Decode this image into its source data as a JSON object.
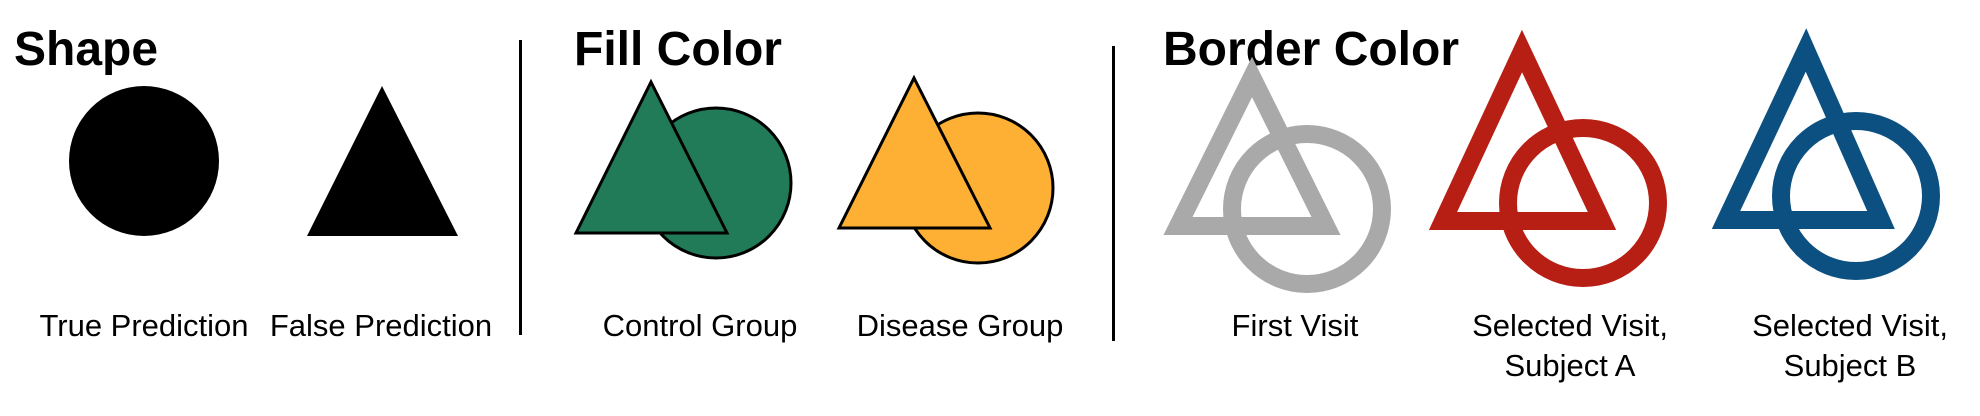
{
  "sections": {
    "shape": {
      "heading": "Shape",
      "items": [
        {
          "label": "True Prediction",
          "icon": "circle-icon"
        },
        {
          "label": "False Prediction",
          "icon": "triangle-icon"
        }
      ]
    },
    "fill_color": {
      "heading": "Fill Color",
      "items": [
        {
          "label": "Control Group",
          "icon": "triangle-circle-icon",
          "color": "#217A58"
        },
        {
          "label": "Disease Group",
          "icon": "triangle-circle-icon",
          "color": "#FDB034"
        }
      ]
    },
    "border_color": {
      "heading": "Border Color",
      "items": [
        {
          "label_lines": [
            "First Visit"
          ],
          "icon": "triangle-circle-outline-icon",
          "color": "#A9A9A9"
        },
        {
          "label_lines": [
            "Selected Visit,",
            "Subject A"
          ],
          "icon": "triangle-circle-outline-icon",
          "color": "#B71E14"
        },
        {
          "label_lines": [
            "Selected Visit,",
            "Subject B"
          ],
          "icon": "triangle-circle-outline-icon",
          "color": "#0C5081"
        }
      ]
    }
  }
}
